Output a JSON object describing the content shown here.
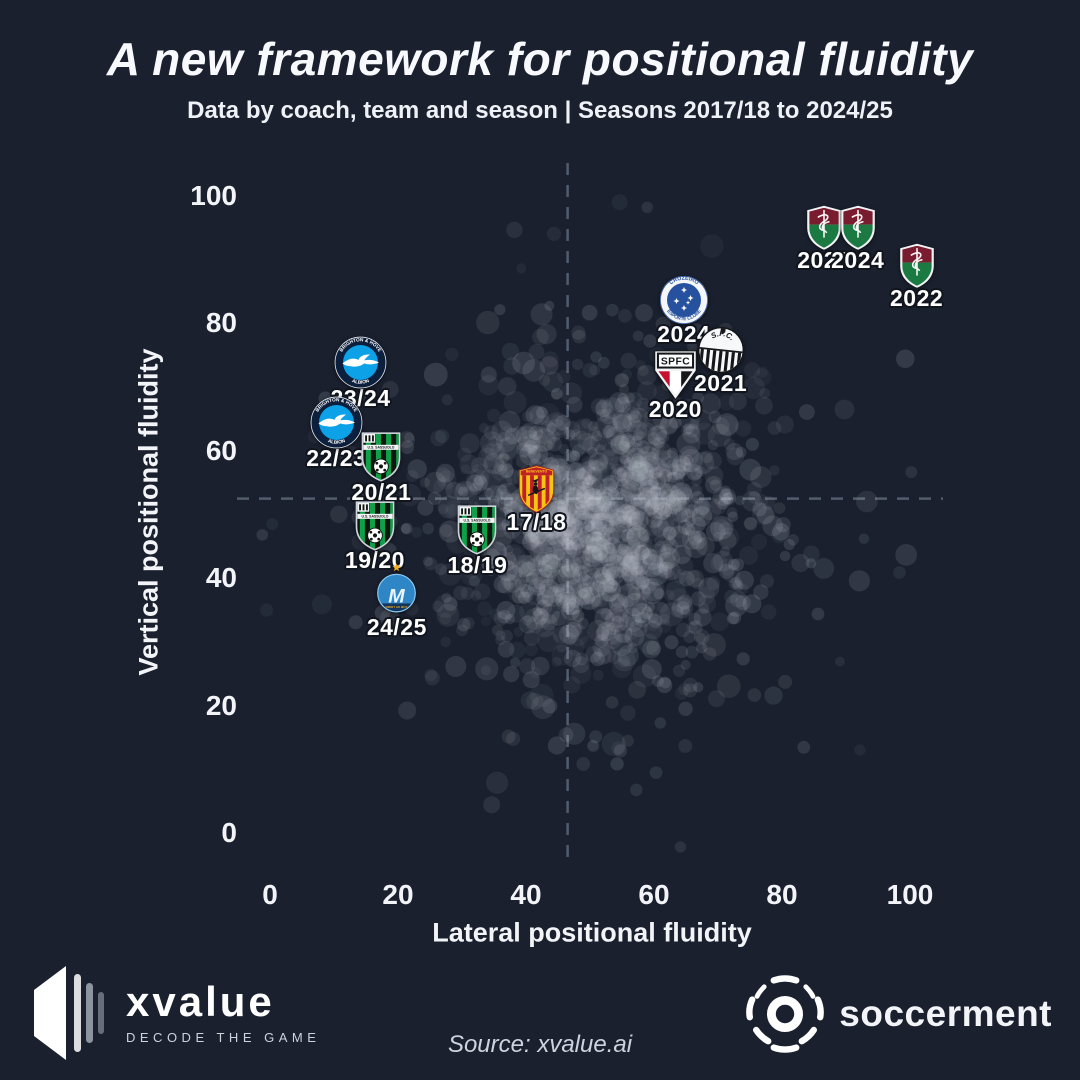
{
  "header": {
    "title": "A new framework for positional fluidity",
    "subtitle": "Data by coach, team and season | Seasons 2017/18 to 2024/25"
  },
  "chart_data": {
    "type": "scatter",
    "xlabel": "Lateral positional fluidity",
    "ylabel": "Vertical positional fluidity",
    "xlim": [
      0,
      100
    ],
    "ylim": [
      0,
      100
    ],
    "x_ticks": [
      0,
      20,
      40,
      60,
      80,
      100
    ],
    "y_ticks": [
      0,
      20,
      40,
      60,
      80,
      100
    ],
    "grid": false,
    "reference_lines": {
      "x": 46.5,
      "y": 52.5,
      "style": "dashed"
    },
    "highlighted_points": [
      {
        "club": "Fluminense",
        "badge": "fluminense",
        "season": "2023",
        "x": 85.5,
        "y": 95.0
      },
      {
        "club": "Fluminense",
        "badge": "fluminense",
        "season": "2024",
        "x": 90.8,
        "y": 95.0
      },
      {
        "club": "Fluminense",
        "badge": "fluminense",
        "season": "2022",
        "x": 100.0,
        "y": 89.0
      },
      {
        "club": "Cruzeiro",
        "badge": "cruzeiro",
        "season": "2024",
        "x": 64.4,
        "y": 83.7
      },
      {
        "club": "Santos",
        "badge": "santos",
        "season": "2021",
        "x": 70.0,
        "y": 75.8
      },
      {
        "club": "Sao Paulo FC",
        "badge": "spfc",
        "season": "2020",
        "x": 62.7,
        "y": 71.9
      },
      {
        "club": "Brighton & Hove Albion",
        "badge": "brighton",
        "season": "23/24",
        "x": 13.6,
        "y": 73.8
      },
      {
        "club": "Brighton & Hove Albion",
        "badge": "brighton",
        "season": "22/23",
        "x": 9.8,
        "y": 64.4
      },
      {
        "club": "Sassuolo",
        "badge": "sassuolo",
        "season": "20/21",
        "x": 16.3,
        "y": 59.0
      },
      {
        "club": "Benevento",
        "badge": "benevento",
        "season": "17/18",
        "x": 40.3,
        "y": 54.0
      },
      {
        "club": "Sassuolo",
        "badge": "sassuolo",
        "season": "19/20",
        "x": 15.3,
        "y": 48.3
      },
      {
        "club": "Sassuolo",
        "badge": "sassuolo",
        "season": "18/19",
        "x": 31.3,
        "y": 47.6
      },
      {
        "club": "Olympique de Marseille",
        "badge": "marseille",
        "season": "24/25",
        "x": 18.8,
        "y": 38.1
      }
    ],
    "background_cloud": {
      "description": "Dense cloud of unlabelled coach/team/season observations",
      "color": "#c7ccd6",
      "center": [
        51,
        48.5
      ],
      "layers": [
        {
          "count": 1150,
          "std_dev": [
            11.0,
            10.5
          ]
        },
        {
          "count": 300,
          "std_dev": [
            21.0,
            18.0
          ]
        }
      ]
    }
  },
  "footer": {
    "xvalue": {
      "name": "xvalue",
      "tagline": "DECODE THE GAME"
    },
    "source": "Source: xvalue.ai",
    "soccerment": {
      "name": "soccerment"
    }
  },
  "colors": {
    "background": "#1a202e",
    "text": "#f4f6f9",
    "scatter_points": "#c7ccd6",
    "reference_line": "#5d6778"
  }
}
